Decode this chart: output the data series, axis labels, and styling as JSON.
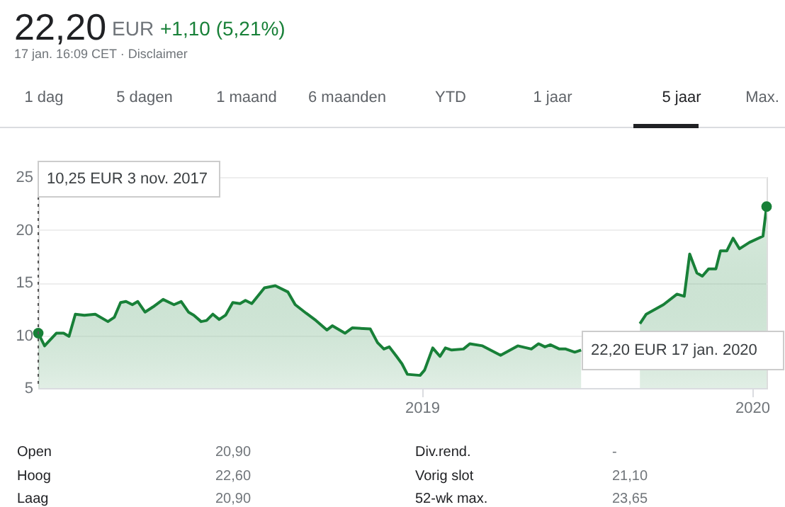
{
  "chart_data": {
    "type": "area",
    "annotations": [
      "22,20",
      "EUR",
      "+1,10 (5,21%)",
      "17 jan. 16:09 CET · Disclaimer",
      "1 dag",
      "5 dagen",
      "1 maand",
      "6 maanden",
      "YTD",
      "1 jaar",
      "5 jaar",
      "Max.",
      "10,25 EUR  3 nov. 2017",
      "22,20 EUR  17 jan. 2020",
      "Open",
      "20,90",
      "Div.rend.",
      "-",
      "Hoog",
      "22,60",
      "Vorig slot",
      "21,10",
      "Laag",
      "20,90",
      "52-wk max.",
      "23,65"
    ],
    "series": [
      {
        "color": "#188038",
        "line_style": "solid",
        "x": [
          "2017-11-03",
          "2017-11-10",
          "2017-11-23",
          "2017-12-01",
          "2017-12-07",
          "2017-12-14",
          "2017-12-24",
          "2018-01-05",
          "2018-01-19",
          "2018-01-26",
          "2018-02-02",
          "2018-02-08",
          "2018-02-15",
          "2018-02-21",
          "2018-03-01",
          "2018-03-10",
          "2018-03-21",
          "2018-04-02",
          "2018-04-10",
          "2018-04-18",
          "2018-04-24",
          "2018-05-02",
          "2018-05-08",
          "2018-05-15",
          "2018-05-22",
          "2018-05-29",
          "2018-06-06",
          "2018-06-14",
          "2018-06-20",
          "2018-06-27",
          "2018-07-11",
          "2018-07-23",
          "2018-08-06",
          "2018-08-14",
          "2018-08-26",
          "2018-09-06",
          "2018-09-18",
          "2018-09-24",
          "2018-10-08",
          "2018-10-16",
          "2018-11-05",
          "2018-11-13",
          "2018-11-20",
          "2018-11-26",
          "2018-12-04",
          "2018-12-10",
          "2018-12-16",
          "2018-12-30",
          "2019-01-04",
          "2019-01-13",
          "2019-01-21",
          "2019-01-27",
          "2019-02-03",
          "2019-02-16",
          "2019-02-23",
          "2019-03-09",
          "2019-03-29",
          "2019-04-17",
          "2019-05-02",
          "2019-05-10",
          "2019-05-17",
          "2019-05-23",
          "2019-06-02",
          "2019-06-09",
          "2019-06-19",
          "2019-06-26",
          "2019-07-04",
          "2019-08-19",
          "2019-08-30",
          "2019-09-06",
          "2019-09-25",
          "2019-10-10",
          "2019-10-18",
          "2019-10-24",
          "2019-11-01",
          "2019-11-07",
          "2019-11-14",
          "2019-11-22",
          "2019-11-27",
          "2019-12-04",
          "2019-12-11",
          "2019-12-18",
          "2019-12-29",
          "2020-01-13",
          "2020-01-17"
        ],
        "values": [
          10.2,
          9.0,
          10.2,
          10.2,
          9.9,
          12.0,
          11.9,
          12.0,
          11.3,
          11.7,
          13.1,
          13.2,
          12.9,
          13.2,
          12.2,
          12.7,
          13.4,
          12.9,
          13.2,
          12.2,
          11.9,
          11.3,
          11.4,
          12.0,
          11.5,
          11.9,
          13.1,
          13.0,
          13.3,
          13.0,
          14.5,
          14.7,
          14.1,
          12.9,
          12.1,
          11.4,
          10.5,
          10.9,
          10.2,
          10.7,
          10.6,
          9.3,
          8.7,
          8.9,
          8.0,
          7.3,
          6.3,
          6.2,
          6.7,
          8.8,
          8.0,
          8.8,
          8.6,
          8.7,
          9.2,
          9.0,
          8.1,
          9.0,
          8.7,
          9.2,
          8.9,
          9.1,
          8.7,
          8.7,
          8.4,
          8.6,
          null,
          null,
          11.1,
          12.0,
          12.9,
          13.9,
          13.7,
          17.7,
          15.9,
          15.6,
          16.3,
          16.3,
          18.0,
          18.0,
          19.2,
          18.2,
          18.8,
          19.4,
          22.2
        ]
      },
      {
        "type": "scatter",
        "marker": "circle",
        "color": "#188038",
        "x": [
          "2017-11-03",
          "2020-01-17"
        ],
        "values": [
          10.2,
          22.2
        ]
      }
    ],
    "xlim": [
      "2017-11-03",
      "2020-01-17"
    ],
    "xticks": [
      {
        "value": "2019-01-01",
        "label": "2019"
      },
      {
        "value": "2020-01-01",
        "label": "2020"
      }
    ],
    "ylim": [
      5,
      25
    ],
    "yticks": [
      5,
      10,
      15,
      20,
      25
    ],
    "grid": "y",
    "ref_lines": [
      {
        "axis": "x",
        "value": "2017-11-03",
        "line_style": "dotted",
        "color": "#555555"
      }
    ]
  }
}
